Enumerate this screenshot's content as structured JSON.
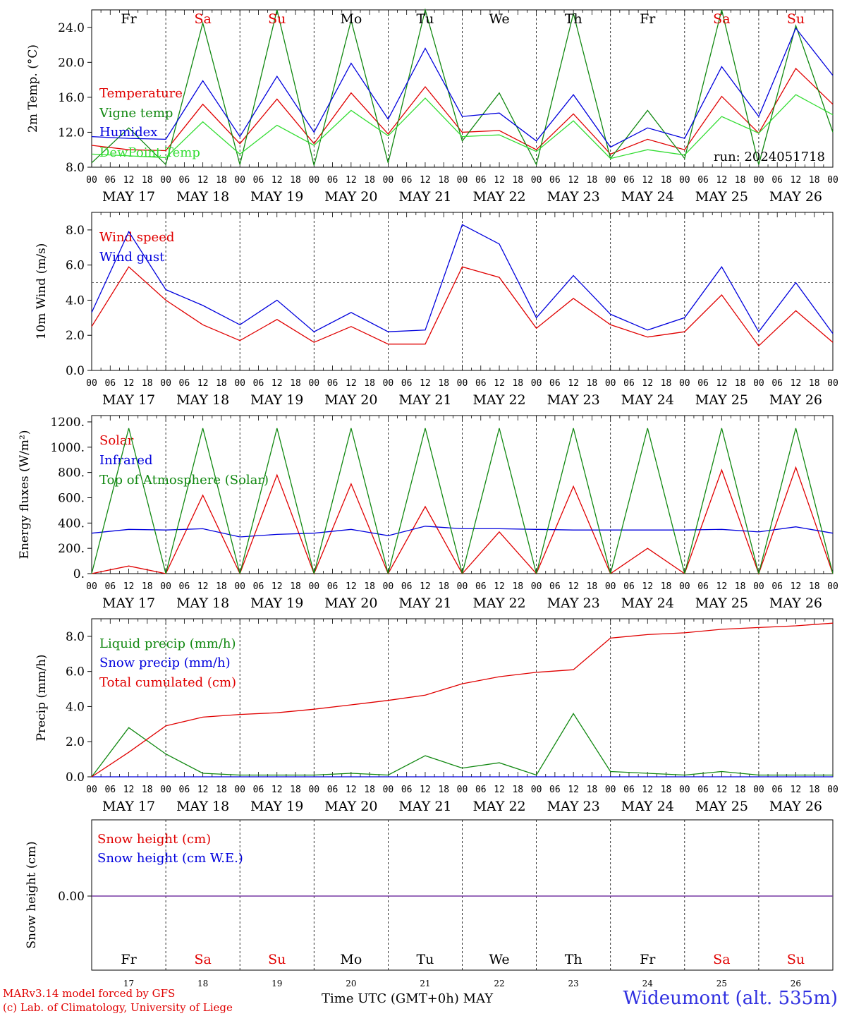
{
  "colors": {
    "red": "#e00000",
    "green": "#118811",
    "blue": "#0000dd",
    "lightgreen": "#33dd33",
    "purple": "#7030a0"
  },
  "days": [
    "MAY 17",
    "MAY 18",
    "MAY 19",
    "MAY 20",
    "MAY 21",
    "MAY 22",
    "MAY 23",
    "MAY 24",
    "MAY 25",
    "MAY 26"
  ],
  "weekdays": [
    "Fr",
    "Sa",
    "Su",
    "Mo",
    "Tu",
    "We",
    "Th",
    "Fr",
    "Sa",
    "Su"
  ],
  "weekend": [
    false,
    true,
    true,
    false,
    false,
    false,
    false,
    false,
    true,
    true
  ],
  "day_numbers": [
    "17",
    "18",
    "19",
    "20",
    "21",
    "22",
    "23",
    "24",
    "25",
    "26"
  ],
  "hour_ticks": [
    "00",
    "06",
    "12",
    "18"
  ],
  "run_label": "run: 2024051718",
  "footer": {
    "model_line": "MARv3.14 model forced by GFS",
    "credit_line": "(c) Lab. of Climatology, University of Liege",
    "xlabel": "Time UTC (GMT+0h) MAY",
    "station": "Wideumont (alt. 535m)"
  },
  "chart_data": [
    {
      "type": "line",
      "ylabel": "2m Temp. (°C)",
      "ylim": [
        8,
        26
      ],
      "yticks": [
        "8.0",
        "12.0",
        "16.0",
        "20.0",
        "24.0"
      ],
      "ytick_values": [
        8,
        12,
        16,
        20,
        24
      ],
      "x_hours": [
        0,
        12,
        24,
        36,
        48,
        60,
        72,
        84,
        96,
        108,
        120,
        132,
        144,
        156,
        168,
        180,
        192,
        204,
        216,
        228,
        240
      ],
      "series": [
        {
          "name": "Temperature",
          "color": "#e00000",
          "values": [
            10.5,
            10.0,
            9.9,
            15.2,
            10.7,
            15.8,
            10.7,
            16.5,
            11.8,
            17.2,
            12.0,
            12.2,
            10.0,
            14.1,
            9.5,
            11.2,
            10.0,
            16.1,
            11.9,
            19.3,
            15.2
          ]
        },
        {
          "name": "Vigne temp",
          "color": "#118811",
          "values": [
            8.5,
            12.5,
            8.3,
            24.5,
            8.3,
            26.0,
            8.2,
            24.8,
            8.5,
            26.0,
            11.0,
            16.5,
            8.3,
            25.6,
            9.0,
            14.5,
            9.0,
            26.0,
            8.3,
            24.2,
            12.0
          ]
        },
        {
          "name": "Humidex",
          "color": "#0000dd",
          "values": [
            11.5,
            11.3,
            11.2,
            17.9,
            11.5,
            18.4,
            12.0,
            19.9,
            13.5,
            21.6,
            13.8,
            14.2,
            11.0,
            16.3,
            10.3,
            12.5,
            11.3,
            19.5,
            13.8,
            23.9,
            18.5
          ]
        },
        {
          "name": "DewPoint Temp",
          "color": "#33dd33",
          "values": [
            9.5,
            9.3,
            9.1,
            13.2,
            9.5,
            12.8,
            10.5,
            14.5,
            11.6,
            15.9,
            11.5,
            11.7,
            9.8,
            13.3,
            9.0,
            10.0,
            9.4,
            13.8,
            11.9,
            16.3,
            14.0
          ]
        }
      ]
    },
    {
      "type": "line",
      "ylabel": "10m Wind (m/s)",
      "ylim": [
        0,
        9
      ],
      "yticks": [
        "0.0",
        "2.0",
        "4.0",
        "6.0",
        "8.0"
      ],
      "ytick_values": [
        0,
        2,
        4,
        6,
        8
      ],
      "reference_line": 5,
      "x_hours": [
        0,
        12,
        24,
        36,
        48,
        60,
        72,
        84,
        96,
        108,
        120,
        132,
        144,
        156,
        168,
        180,
        192,
        204,
        216,
        228,
        240
      ],
      "series": [
        {
          "name": "Wind speed",
          "color": "#e00000",
          "values": [
            2.5,
            5.9,
            4.0,
            2.6,
            1.7,
            2.9,
            1.6,
            2.5,
            1.5,
            1.5,
            5.9,
            5.3,
            2.4,
            4.1,
            2.6,
            1.9,
            2.2,
            4.3,
            1.4,
            3.4,
            1.6
          ]
        },
        {
          "name": "Wind gust",
          "color": "#0000dd",
          "values": [
            3.3,
            7.9,
            4.6,
            3.7,
            2.6,
            4.0,
            2.2,
            3.3,
            2.2,
            2.3,
            8.3,
            7.2,
            3.0,
            5.4,
            3.2,
            2.3,
            3.0,
            5.9,
            2.2,
            5.0,
            2.1
          ]
        }
      ]
    },
    {
      "type": "line",
      "ylabel": "Energy fluxes (W/m²)",
      "ylim": [
        0,
        1250
      ],
      "yticks": [
        "0.",
        "200.",
        "400.",
        "600.",
        "800.",
        "1000.",
        "1200."
      ],
      "ytick_values": [
        0,
        200,
        400,
        600,
        800,
        1000,
        1200
      ],
      "x_hours": [
        0,
        12,
        24,
        36,
        48,
        60,
        72,
        84,
        96,
        108,
        120,
        132,
        144,
        156,
        168,
        180,
        192,
        204,
        216,
        228,
        240
      ],
      "series": [
        {
          "name": "Solar",
          "color": "#e00000",
          "values": [
            0,
            60,
            0,
            620,
            0,
            780,
            0,
            710,
            0,
            530,
            0,
            330,
            0,
            690,
            0,
            200,
            0,
            820,
            0,
            840,
            0
          ]
        },
        {
          "name": "Infrared",
          "color": "#0000dd",
          "values": [
            320,
            350,
            345,
            355,
            290,
            310,
            320,
            350,
            300,
            375,
            355,
            355,
            350,
            345,
            345,
            345,
            345,
            350,
            330,
            370,
            320
          ]
        },
        {
          "name": "Top of Atmosphere (Solar)",
          "color": "#118811",
          "values": [
            0,
            1150,
            0,
            1150,
            0,
            1150,
            0,
            1150,
            0,
            1150,
            0,
            1150,
            0,
            1150,
            0,
            1150,
            0,
            1150,
            0,
            1150,
            0
          ]
        }
      ]
    },
    {
      "type": "line",
      "ylabel": "Precip (mm/h)",
      "ylim": [
        0,
        9
      ],
      "yticks": [
        "0.0",
        "2.0",
        "4.0",
        "6.0",
        "8.0"
      ],
      "ytick_values": [
        0,
        2,
        4,
        6,
        8
      ],
      "x_hours": [
        0,
        12,
        24,
        36,
        48,
        60,
        72,
        84,
        96,
        108,
        120,
        132,
        144,
        156,
        168,
        180,
        192,
        204,
        216,
        228,
        240
      ],
      "series": [
        {
          "name": "Liquid precip (mm/h)",
          "color": "#118811",
          "values": [
            0,
            2.8,
            1.3,
            0.2,
            0.1,
            0.1,
            0.1,
            0.2,
            0.1,
            1.2,
            0.5,
            0.8,
            0.1,
            3.6,
            0.3,
            0.2,
            0.1,
            0.3,
            0.1,
            0.1,
            0.1
          ]
        },
        {
          "name": "Snow precip (mm/h)",
          "color": "#0000dd",
          "values": [
            0,
            0,
            0,
            0,
            0,
            0,
            0,
            0,
            0,
            0,
            0,
            0,
            0,
            0,
            0,
            0,
            0,
            0,
            0,
            0,
            0
          ]
        },
        {
          "name": "Total cumulated (cm)",
          "color": "#e00000",
          "values": [
            0,
            1.4,
            2.9,
            3.4,
            3.55,
            3.65,
            3.85,
            4.1,
            4.35,
            4.65,
            5.3,
            5.7,
            5.95,
            6.1,
            7.9,
            8.1,
            8.2,
            8.4,
            8.5,
            8.6,
            8.75
          ]
        }
      ]
    },
    {
      "type": "line",
      "ylabel": "Snow height (cm)",
      "yticks": [
        "0.00"
      ],
      "ytick_values": [
        0
      ],
      "x_hours": [
        0,
        240
      ],
      "series": [
        {
          "name": "Snow height (cm)",
          "color": "#e00000",
          "values": [
            0,
            0
          ]
        },
        {
          "name": "Snow height (cm W.E.)",
          "color": "#0000dd",
          "values": [
            0,
            0
          ]
        }
      ]
    }
  ]
}
